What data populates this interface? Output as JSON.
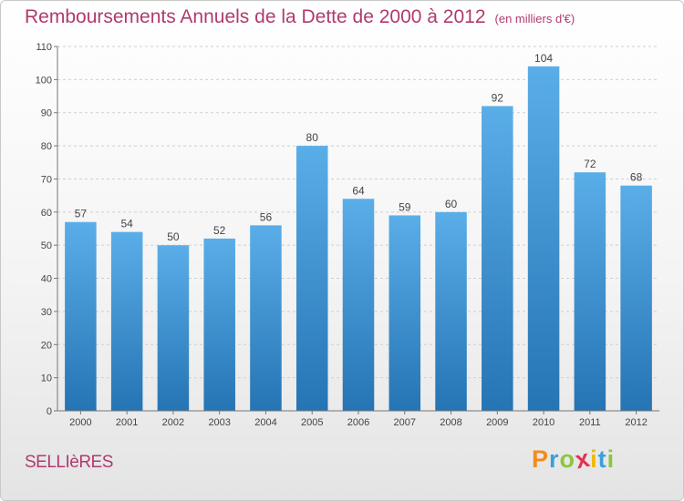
{
  "header": {
    "title": "Remboursements Annuels de la Dette de 2000 à 2012",
    "unit": "(en milliers d'€)"
  },
  "commune": "SELLIèRES",
  "logo": {
    "letters": [
      "P",
      "r",
      "o",
      "x",
      "i",
      "t",
      "i"
    ],
    "colors": [
      "#f28c1e",
      "#3aa0d8",
      "#8cc63f",
      "#e0334f",
      "#f5b800",
      "#3aa0d8",
      "#8cc63f"
    ]
  },
  "chart_data": {
    "type": "bar",
    "title": "Remboursements Annuels de la Dette de 2000 à 2012",
    "xlabel": "",
    "ylabel": "",
    "categories": [
      "2000",
      "2001",
      "2002",
      "2003",
      "2004",
      "2005",
      "2006",
      "2007",
      "2008",
      "2009",
      "2010",
      "2011",
      "2012"
    ],
    "values": [
      57,
      54,
      50,
      52,
      56,
      80,
      64,
      59,
      60,
      92,
      104,
      72,
      68
    ],
    "ylim": [
      0,
      110
    ],
    "yticks": [
      0,
      10,
      20,
      30,
      40,
      50,
      60,
      70,
      80,
      90,
      100,
      110
    ],
    "grid": true,
    "bar_color": "#4aa3e4",
    "bar_color_dark": "#2a79b8"
  }
}
